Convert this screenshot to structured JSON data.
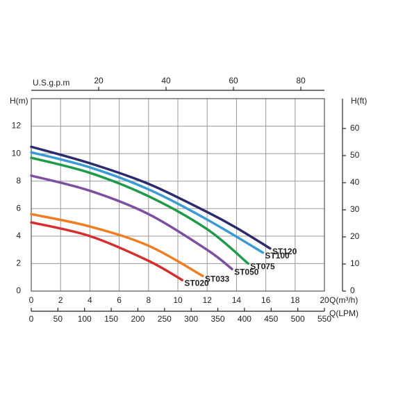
{
  "chart_data": {
    "type": "line",
    "xlabel": "Q(m³/h)",
    "ylabel": "H(m)",
    "y2label": "H(ft)",
    "xlim": [
      0,
      20
    ],
    "xticks": [
      0,
      2,
      4,
      6,
      8,
      10,
      12,
      14,
      16,
      18,
      20
    ],
    "ylim": [
      0,
      14
    ],
    "yticks": [
      0,
      2,
      4,
      6,
      8,
      10,
      12
    ],
    "y2lim": [
      0,
      71
    ],
    "y2ticks": [
      0,
      10,
      20,
      30,
      40,
      50,
      60
    ],
    "top_axis": {
      "label": "U.S.g.p.m",
      "lim": [
        0,
        87
      ],
      "ticks": [
        20,
        40,
        60,
        80
      ]
    },
    "bottom_axis2": {
      "label": "Q(LPM)",
      "lim": [
        0,
        550
      ],
      "ticks": [
        0,
        50,
        100,
        150,
        200,
        250,
        300,
        350,
        400,
        450,
        500,
        550
      ]
    },
    "grid": true,
    "series": [
      {
        "name": "ST120",
        "color": "#2b2a6c",
        "x": [
          0,
          4,
          8,
          12,
          14,
          16.3
        ],
        "values": [
          10.5,
          9.3,
          7.8,
          5.75,
          4.6,
          3.1
        ]
      },
      {
        "name": "ST100",
        "color": "#3a9ad6",
        "x": [
          0,
          4,
          8,
          12,
          15.8
        ],
        "values": [
          10.1,
          9.0,
          7.4,
          5.2,
          2.8
        ]
      },
      {
        "name": "ST075",
        "color": "#1f9a4a",
        "x": [
          0,
          4,
          8,
          12,
          14.8
        ],
        "values": [
          9.7,
          8.6,
          6.9,
          4.5,
          2.0
        ]
      },
      {
        "name": "ST050",
        "color": "#7e4ea0",
        "x": [
          0,
          4,
          8,
          12,
          13.7
        ],
        "values": [
          8.4,
          7.3,
          5.6,
          3.0,
          1.6
        ]
      },
      {
        "name": "ST033",
        "color": "#ef7d22",
        "x": [
          0,
          4,
          8,
          11.7
        ],
        "values": [
          5.6,
          4.7,
          3.3,
          1.1
        ]
      },
      {
        "name": "ST020",
        "color": "#d62d2d",
        "x": [
          0,
          4,
          8,
          10.3
        ],
        "values": [
          5.0,
          4.0,
          2.2,
          0.8
        ]
      }
    ]
  }
}
